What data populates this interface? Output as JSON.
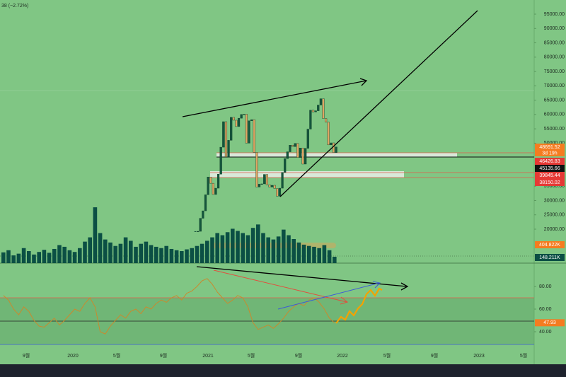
{
  "header": {
    "change": "38 (−2.72%)"
  },
  "price_axis": {
    "ticks": [
      {
        "value": 95000,
        "label": "95000.00"
      },
      {
        "value": 90000,
        "label": "90000.00"
      },
      {
        "value": 85000,
        "label": "85000.00"
      },
      {
        "value": 80000,
        "label": "80000.00"
      },
      {
        "value": 75000,
        "label": "75000.00"
      },
      {
        "value": 70000,
        "label": "70000.00"
      },
      {
        "value": 65000,
        "label": "65000.00"
      },
      {
        "value": 60000,
        "label": "60000.00"
      },
      {
        "value": 55000,
        "label": "55000.00"
      },
      {
        "value": 50000,
        "label": "50000.00"
      },
      {
        "value": 35000,
        "label": "35000.00"
      },
      {
        "value": 30000,
        "label": "30000.00"
      },
      {
        "value": 25000,
        "label": "25000.00"
      },
      {
        "value": 20000,
        "label": "20000.00"
      }
    ]
  },
  "price_tags": [
    {
      "value": 48691.52,
      "countdown": "3d 19h",
      "color": "#f57c20"
    },
    {
      "value": 46426.83,
      "color": "#e53935"
    },
    {
      "value": 45135.66,
      "color": "#111111"
    },
    {
      "value": 39845.44,
      "color": "#e53935"
    },
    {
      "value": 38150.02,
      "color": "#e53935"
    }
  ],
  "volume_tags": [
    {
      "value": 404.822,
      "label": "404.822K",
      "color": "#f57c20"
    },
    {
      "value": 148.211,
      "label": "148.211K",
      "color": "#0b4f44"
    }
  ],
  "rsi_axis": {
    "ticks": [
      {
        "value": 80,
        "label": "80.00"
      },
      {
        "value": 60,
        "label": "60.00"
      },
      {
        "value": 40,
        "label": "40.00"
      }
    ]
  },
  "rsi_tag": {
    "value": 47.93,
    "color": "#f57c20"
  },
  "time_axis": [
    "9월",
    "2020",
    "5월",
    "9월",
    "2021",
    "5월",
    "9월",
    "2022",
    "5월",
    "9월",
    "2023",
    "5월"
  ],
  "candles": {
    "closes": [
      19150,
      19250,
      23800,
      26400,
      32000,
      38200,
      36000,
      32100,
      34300,
      39200,
      48600,
      57500,
      45200,
      51000,
      59000,
      58000,
      55800,
      58700,
      60000,
      60100,
      50000,
      57800,
      58200,
      46800,
      34700,
      35700,
      35800,
      39100,
      35500,
      34700,
      35300,
      34200,
      31500,
      34300,
      39800,
      44600,
      47000,
      49300,
      48800,
      49900,
      45000,
      48300,
      42700,
      48200,
      54900,
      61500,
      60900,
      61300,
      63300,
      65500,
      58600,
      57300,
      49400,
      50100,
      46700,
      48691.52
    ],
    "up_color": "#14553c",
    "down_color": "#e0a462"
  },
  "volume": {
    "values": [
      250,
      300,
      180,
      220,
      350,
      280,
      200,
      260,
      310,
      240,
      330,
      420,
      380,
      300,
      260,
      350,
      500,
      600,
      1300,
      700,
      550,
      480,
      400,
      450,
      600,
      520,
      380,
      450,
      500,
      420,
      380,
      350,
      400,
      330,
      300,
      280,
      320,
      350,
      400,
      450,
      520,
      600,
      700,
      650,
      720,
      800,
      750,
      700,
      650,
      820,
      900,
      700,
      600,
      550,
      620,
      780,
      650,
      560,
      480,
      430,
      400,
      380,
      350,
      420,
      300,
      148.211
    ],
    "color": "#0b4f44"
  },
  "rsi": {
    "values": [
      72,
      68,
      60,
      55,
      62,
      58,
      50,
      45,
      44,
      48,
      52,
      46,
      50,
      55,
      60,
      58,
      65,
      70,
      62,
      40,
      38,
      45,
      50,
      55,
      52,
      58,
      60,
      56,
      62,
      60,
      65,
      68,
      66,
      70,
      72,
      68,
      74,
      76,
      80,
      85,
      87,
      82,
      75,
      70,
      65,
      68,
      72,
      70,
      62,
      48,
      42,
      44,
      46,
      43,
      47,
      52,
      58,
      62,
      65,
      63,
      68,
      70,
      66,
      60,
      52,
      47.93
    ],
    "color": "#c98a2e"
  }
}
